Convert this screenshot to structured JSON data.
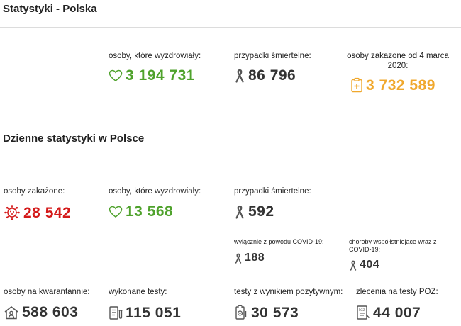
{
  "poland": {
    "title": "Statystyki - Polska",
    "recovered": {
      "label": "osoby, które wyzdrowiały:",
      "value": "3 194 731",
      "icon": "heart-icon",
      "color": "#4fa22c"
    },
    "deaths": {
      "label": "przypadki śmiertelne:",
      "value": "86 796",
      "icon": "ribbon-icon"
    },
    "infected_total": {
      "label": "osoby zakażone od 4 marca 2020:",
      "value": "3 732 589",
      "icon": "medical-clipboard-icon",
      "color": "#f0a82d"
    }
  },
  "daily": {
    "title": "Dzienne statystyki w Polsce",
    "infected": {
      "label": "osoby zakażone:",
      "value": "28 542",
      "icon": "virus-icon",
      "color": "#d41a1a"
    },
    "recovered": {
      "label": "osoby, które wyzdrowiały:",
      "value": "13 568",
      "icon": "heart-icon",
      "color": "#4fa22c"
    },
    "deaths": {
      "label": "przypadki śmiertelne:",
      "value": "592",
      "icon": "ribbon-icon"
    },
    "covid_only": {
      "label": "wyłącznie z powodu COVID-19:",
      "value": "188",
      "icon": "ribbon-icon"
    },
    "comorbid": {
      "label": "choroby współistniejące wraz z COVID-19:",
      "value": "404",
      "icon": "ribbon-icon"
    },
    "quarantine": {
      "label": "osoby na kwarantannie:",
      "value": "588 603",
      "icon": "house-person-icon"
    },
    "tests": {
      "label": "wykonane testy:",
      "value": "115 051",
      "icon": "test-tubes-icon"
    },
    "positive_tests": {
      "label": "testy z wynikiem pozytywnym:",
      "value": "30 573",
      "icon": "positive-test-icon"
    },
    "poz_orders": {
      "label": "zlecenia na testy POZ:",
      "value": "44 007",
      "icon": "poz-order-icon"
    }
  }
}
